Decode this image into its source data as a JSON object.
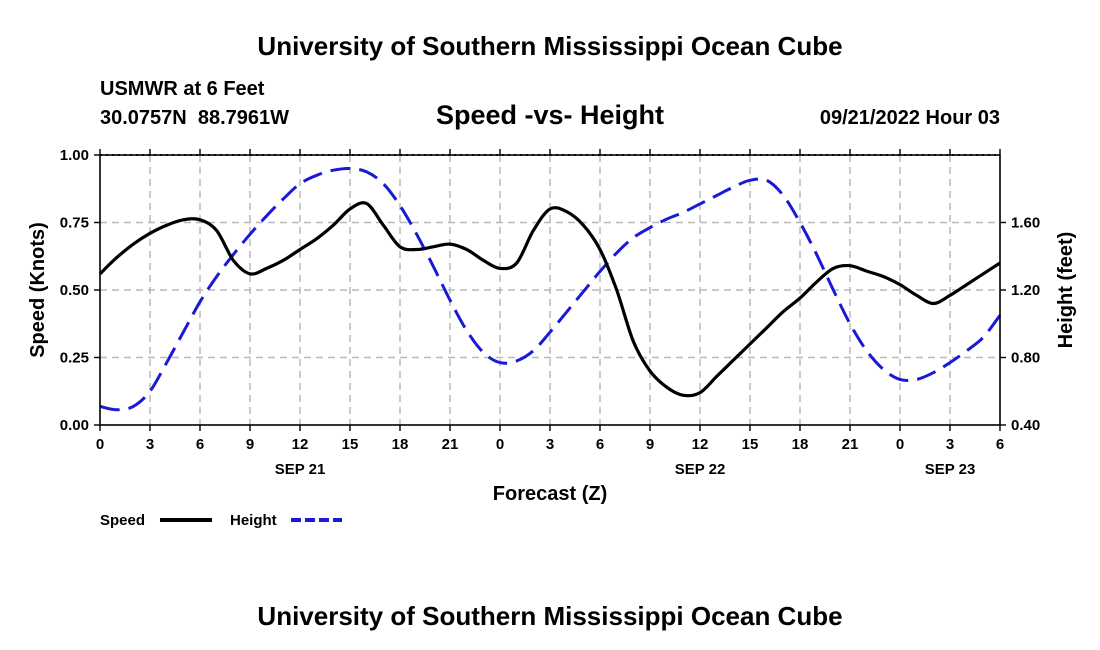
{
  "page": {
    "top_title": "University of Southern Mississippi Ocean Cube",
    "bottom_title": "University of Southern Mississippi Ocean Cube",
    "station": "USMWR at 6 Feet",
    "coords": "30.0757N  88.7961W",
    "datetime": "09/21/2022 Hour 03"
  },
  "chart_data": {
    "type": "line",
    "title": "Speed -vs- Height",
    "xlabel": "Forecast (Z)",
    "ylabel": "Speed (Knots)",
    "y2label": "Height (feet)",
    "x_hours": [
      0,
      3,
      6,
      9,
      12,
      15,
      18,
      21,
      24,
      27,
      30,
      33,
      36,
      39,
      42,
      45,
      48,
      51,
      54
    ],
    "x_tick_labels": [
      "0",
      "3",
      "6",
      "9",
      "12",
      "15",
      "18",
      "21",
      "0",
      "3",
      "6",
      "9",
      "12",
      "15",
      "18",
      "21",
      "0",
      "3",
      "6"
    ],
    "day_labels": [
      {
        "hour": 12,
        "label": "SEP 21"
      },
      {
        "hour": 36,
        "label": "SEP 22"
      },
      {
        "hour": 51,
        "label": "SEP 23"
      }
    ],
    "ylim": [
      0,
      1
    ],
    "yticks": [
      0,
      0.25,
      0.5,
      0.75,
      1
    ],
    "ytick_labels": [
      "0.00",
      "0.25",
      "0.50",
      "0.75",
      "1.00"
    ],
    "y2lim": [
      0.4,
      2.0
    ],
    "y2ticks": [
      0.4,
      0.8,
      1.2,
      1.6
    ],
    "y2tick_labels": [
      "0.40",
      "0.80",
      "1.20",
      "1.60"
    ],
    "grid": true,
    "legend_position": "bottom-left",
    "series": [
      {
        "name": "Speed",
        "axis": "left",
        "color": "#000000",
        "dash": "solid",
        "x": [
          0,
          1,
          2,
          3,
          4,
          5,
          6,
          7,
          8,
          9,
          10,
          11,
          12,
          13,
          14,
          15,
          16,
          17,
          18,
          19,
          20,
          21,
          22,
          23,
          24,
          25,
          26,
          27,
          28,
          29,
          30,
          31,
          32,
          33,
          34,
          35,
          36,
          37,
          38,
          39,
          40,
          41,
          42,
          43,
          44,
          45,
          46,
          47,
          48,
          49,
          50,
          51,
          52,
          53,
          54
        ],
        "values": [
          0.56,
          0.62,
          0.67,
          0.71,
          0.74,
          0.76,
          0.76,
          0.72,
          0.61,
          0.56,
          0.58,
          0.61,
          0.65,
          0.69,
          0.74,
          0.8,
          0.82,
          0.74,
          0.66,
          0.65,
          0.66,
          0.67,
          0.65,
          0.61,
          0.58,
          0.6,
          0.72,
          0.8,
          0.79,
          0.74,
          0.65,
          0.5,
          0.31,
          0.2,
          0.14,
          0.11,
          0.12,
          0.18,
          0.24,
          0.3,
          0.36,
          0.42,
          0.47,
          0.53,
          0.58,
          0.59,
          0.57,
          0.55,
          0.52,
          0.48,
          0.45,
          0.48,
          0.52,
          0.56,
          0.6
        ]
      },
      {
        "name": "Height",
        "axis": "right",
        "color": "#1a1ad6",
        "dash": "dashed",
        "x": [
          0,
          1,
          2,
          3,
          4,
          5,
          6,
          7,
          8,
          9,
          10,
          11,
          12,
          13,
          14,
          15,
          16,
          17,
          18,
          19,
          20,
          21,
          22,
          23,
          24,
          25,
          26,
          27,
          28,
          29,
          30,
          31,
          32,
          33,
          34,
          35,
          36,
          37,
          38,
          39,
          40,
          41,
          42,
          43,
          44,
          45,
          46,
          47,
          48,
          49,
          50,
          51,
          52,
          53,
          54
        ],
        "values": [
          0.51,
          0.49,
          0.51,
          0.6,
          0.77,
          0.95,
          1.13,
          1.28,
          1.41,
          1.53,
          1.64,
          1.74,
          1.83,
          1.88,
          1.91,
          1.92,
          1.9,
          1.83,
          1.7,
          1.53,
          1.34,
          1.14,
          0.96,
          0.83,
          0.77,
          0.78,
          0.84,
          0.95,
          1.07,
          1.19,
          1.31,
          1.42,
          1.51,
          1.57,
          1.62,
          1.66,
          1.71,
          1.76,
          1.81,
          1.85,
          1.85,
          1.76,
          1.6,
          1.41,
          1.2,
          1.0,
          0.84,
          0.73,
          0.67,
          0.67,
          0.71,
          0.77,
          0.84,
          0.92,
          1.05
        ]
      }
    ]
  },
  "legend": {
    "speed_label": "Speed",
    "height_label": "Height"
  }
}
